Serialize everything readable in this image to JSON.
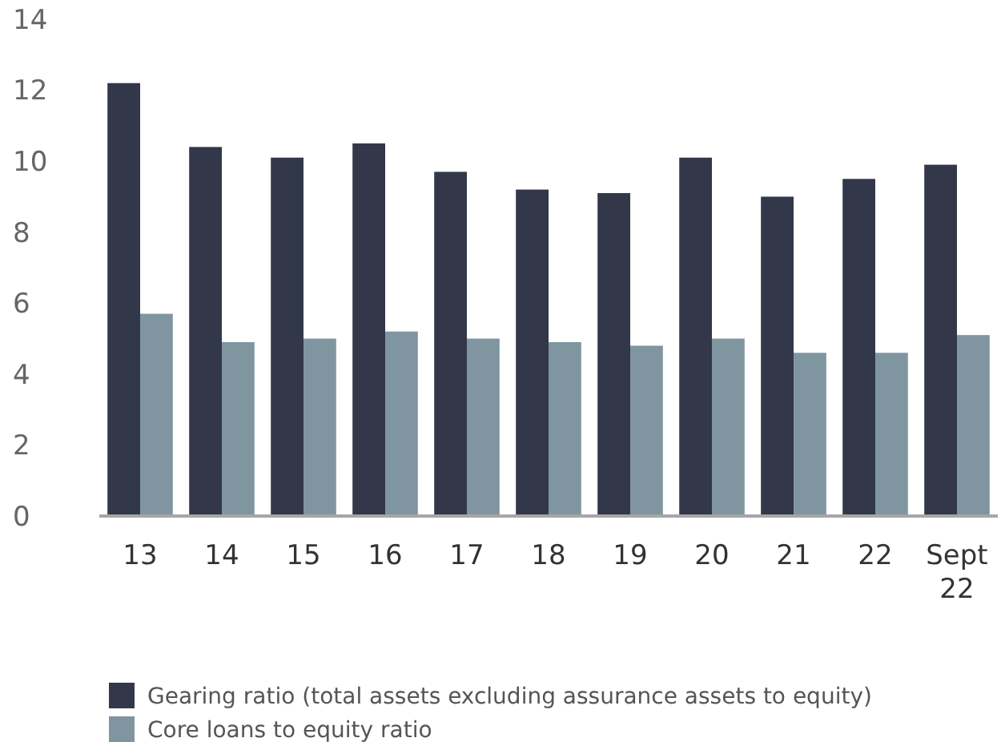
{
  "chart_data": {
    "type": "bar",
    "categories": [
      "13",
      "14",
      "15",
      "16",
      "17",
      "18",
      "19",
      "20",
      "21",
      "22",
      "Sept 22"
    ],
    "series": [
      {
        "name": "Gearing ratio (total assets excluding assurance assets to equity)",
        "color": "#323849",
        "values": [
          12.2,
          10.4,
          10.1,
          10.5,
          9.7,
          9.2,
          9.1,
          10.1,
          9.0,
          9.5,
          9.9
        ]
      },
      {
        "name": "Core loans to equity ratio",
        "color": "#7f96a1",
        "values": [
          5.7,
          4.9,
          5.0,
          5.2,
          5.0,
          4.9,
          4.8,
          5.0,
          4.6,
          4.6,
          5.1
        ]
      }
    ],
    "ylim": [
      0,
      14
    ],
    "yticks": [
      0,
      2,
      4,
      6,
      8,
      10,
      12,
      14
    ],
    "grid": false,
    "legend": "bottom left"
  }
}
